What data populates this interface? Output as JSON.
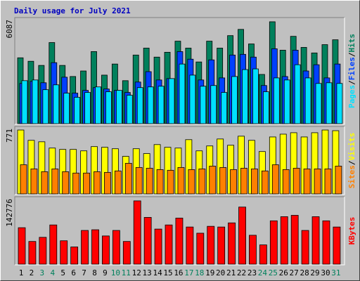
{
  "chart_data": [
    {
      "type": "bar",
      "title": "Daily usage for July 2021",
      "legend_separator": "/",
      "ylim": [
        0,
        6087
      ],
      "series": [
        {
          "name": "Hits",
          "color": "#00805c",
          "values": [
            3855,
            3652,
            3409,
            4748,
            3409,
            2760,
            3084,
            4220,
            2841,
            3490,
            2516,
            4017,
            4423,
            3896,
            4180,
            4829,
            4423,
            3612,
            4829,
            4423,
            5154,
            5519,
            4667,
            2881,
            5965,
            4301,
            5113,
            4464,
            4139,
            4626,
            4910
          ]
        },
        {
          "name": "Files",
          "color": "#0040ff",
          "values": [
            2354,
            2475,
            2394,
            3571,
            2719,
            1786,
            1948,
            2110,
            2029,
            1948,
            1826,
            2435,
            3044,
            2557,
            2638,
            4220,
            3774,
            2557,
            3733,
            2678,
            4017,
            4058,
            3896,
            2232,
            4383,
            2759,
            4301,
            3084,
            3449,
            2678,
            3490
          ]
        },
        {
          "name": "Pages",
          "color": "#00e0ff",
          "values": [
            2516,
            2557,
            1988,
            2272,
            1786,
            1542,
            1826,
            2151,
            1867,
            1948,
            1664,
            2110,
            2151,
            2191,
            2638,
            3490,
            2841,
            2191,
            2232,
            1826,
            2760,
            3165,
            3206,
            1867,
            2678,
            2557,
            3449,
            2678,
            2354,
            2394,
            2354
          ]
        }
      ]
    },
    {
      "type": "bar",
      "legend_separator": "/",
      "ylim": [
        0,
        771
      ],
      "series": [
        {
          "name": "Visits",
          "color": "#ffff00",
          "values": [
            754,
            632,
            615,
            541,
            525,
            525,
            508,
            558,
            550,
            533,
            443,
            533,
            476,
            582,
            550,
            541,
            640,
            508,
            566,
            648,
            574,
            681,
            632,
            500,
            672,
            705,
            722,
            672,
            722,
            754,
            746
          ]
        },
        {
          "name": "Sites",
          "color": "#ff8000",
          "values": [
            344,
            295,
            262,
            295,
            262,
            246,
            246,
            262,
            254,
            271,
            361,
            312,
            303,
            287,
            279,
            312,
            287,
            295,
            328,
            312,
            287,
            303,
            295,
            271,
            344,
            287,
            303,
            295,
            295,
            295,
            328
          ]
        }
      ]
    },
    {
      "type": "bar",
      "ylim": [
        0,
        142776
      ],
      "categories": [
        "1",
        "2",
        "3",
        "4",
        "5",
        "6",
        "7",
        "8",
        "9",
        "10",
        "11",
        "12",
        "13",
        "14",
        "15",
        "16",
        "17",
        "18",
        "19",
        "20",
        "21",
        "22",
        "23",
        "24",
        "25",
        "26",
        "27",
        "28",
        "29",
        "30",
        "31"
      ],
      "category_colors": [
        "#000000",
        "#000000",
        "#00805c",
        "#00805c",
        "#000000",
        "#000000",
        "#000000",
        "#000000",
        "#000000",
        "#00805c",
        "#00805c",
        "#000000",
        "#000000",
        "#000000",
        "#000000",
        "#000000",
        "#00805c",
        "#00805c",
        "#000000",
        "#000000",
        "#000000",
        "#000000",
        "#000000",
        "#00805c",
        "#00805c",
        "#000000",
        "#000000",
        "#000000",
        "#000000",
        "#000000",
        "#00805c"
      ],
      "series": [
        {
          "name": "KBytes",
          "color": "#ff0000",
          "values": [
            79659,
            49599,
            58617,
            85671,
            51102,
            37575,
            73647,
            75150,
            61623,
            73647,
            49599,
            138276,
            102204,
            76653,
            85671,
            100701,
            81162,
            67635,
            82665,
            81162,
            90180,
            124749,
            63126,
            42084,
            94689,
            103707,
            106713,
            73647,
            103707,
            94689,
            81162
          ]
        }
      ]
    }
  ]
}
